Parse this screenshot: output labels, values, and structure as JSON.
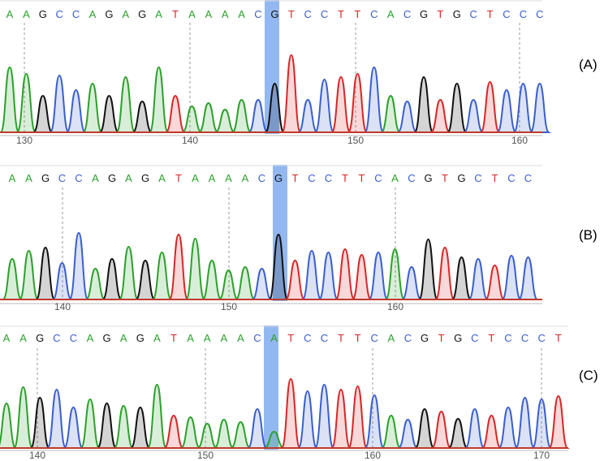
{
  "colors": {
    "A": "#2ca02c",
    "C": "#3a5fcd",
    "G": "#111111",
    "T": "#d62728",
    "highlight": "#6fa0ec",
    "axis_bar": "#d4634a"
  },
  "panels": [
    {
      "label": "(A)",
      "sequence": "AAGCCAGAGATAAAACGTCCTTCACGTGCTCCC",
      "ticks": [
        "130",
        "140",
        "150",
        "160"
      ]
    },
    {
      "label": "(B)",
      "sequence": "AAGCCAGAGATAAAACGTCCTTCACGTGCTCC",
      "ticks": [
        "140",
        "150",
        "160"
      ]
    },
    {
      "label": "(C)",
      "sequence": "AAGCCAGAGATAAAACATCCTTCACGTGCTCCCT",
      "ticks": [
        "140",
        "150",
        "160",
        "170"
      ]
    }
  ]
}
